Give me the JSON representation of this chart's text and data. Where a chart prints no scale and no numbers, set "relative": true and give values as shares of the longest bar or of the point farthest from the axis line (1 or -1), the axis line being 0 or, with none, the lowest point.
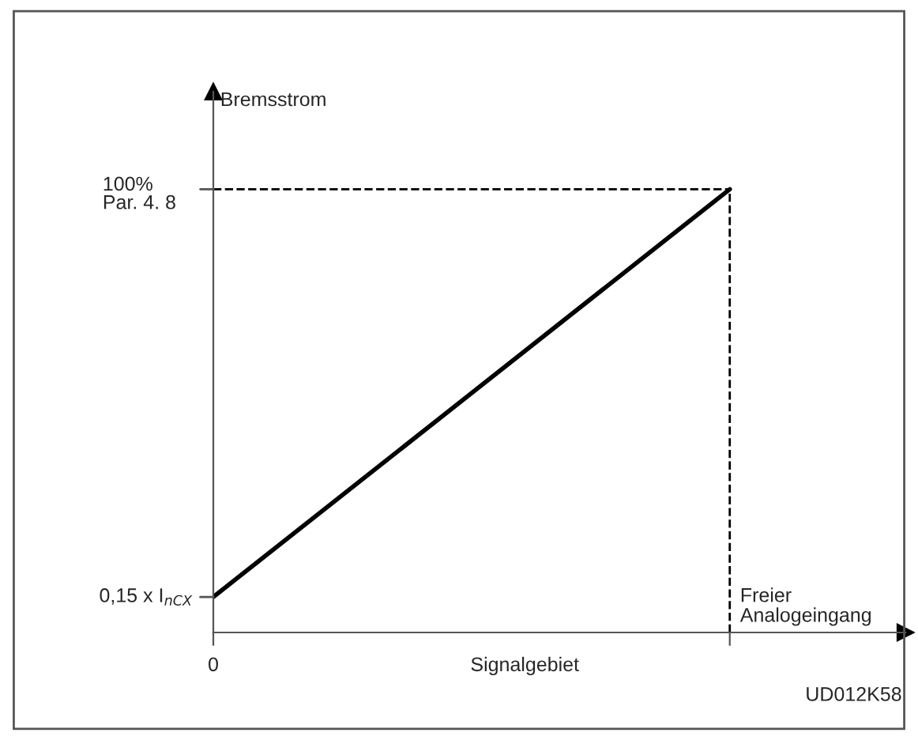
{
  "chart_data": {
    "type": "line",
    "relative": true,
    "ylabel": "Bremsstrom",
    "xlabel": "Freier\nAnalogeingang",
    "categories": [
      null,
      null
    ],
    "series": [
      {
        "color": "#000000",
        "values": [
          0.08,
          1
        ]
      }
    ],
    "annotations": [
      "0,15 x I$_{nCX}$",
      "100%\nPar. 4. 8",
      "0",
      "Signalgebiet",
      "UD012K58"
    ],
    "grid": false,
    "legend": false,
    "marker": "none",
    "line_style": "solid"
  }
}
